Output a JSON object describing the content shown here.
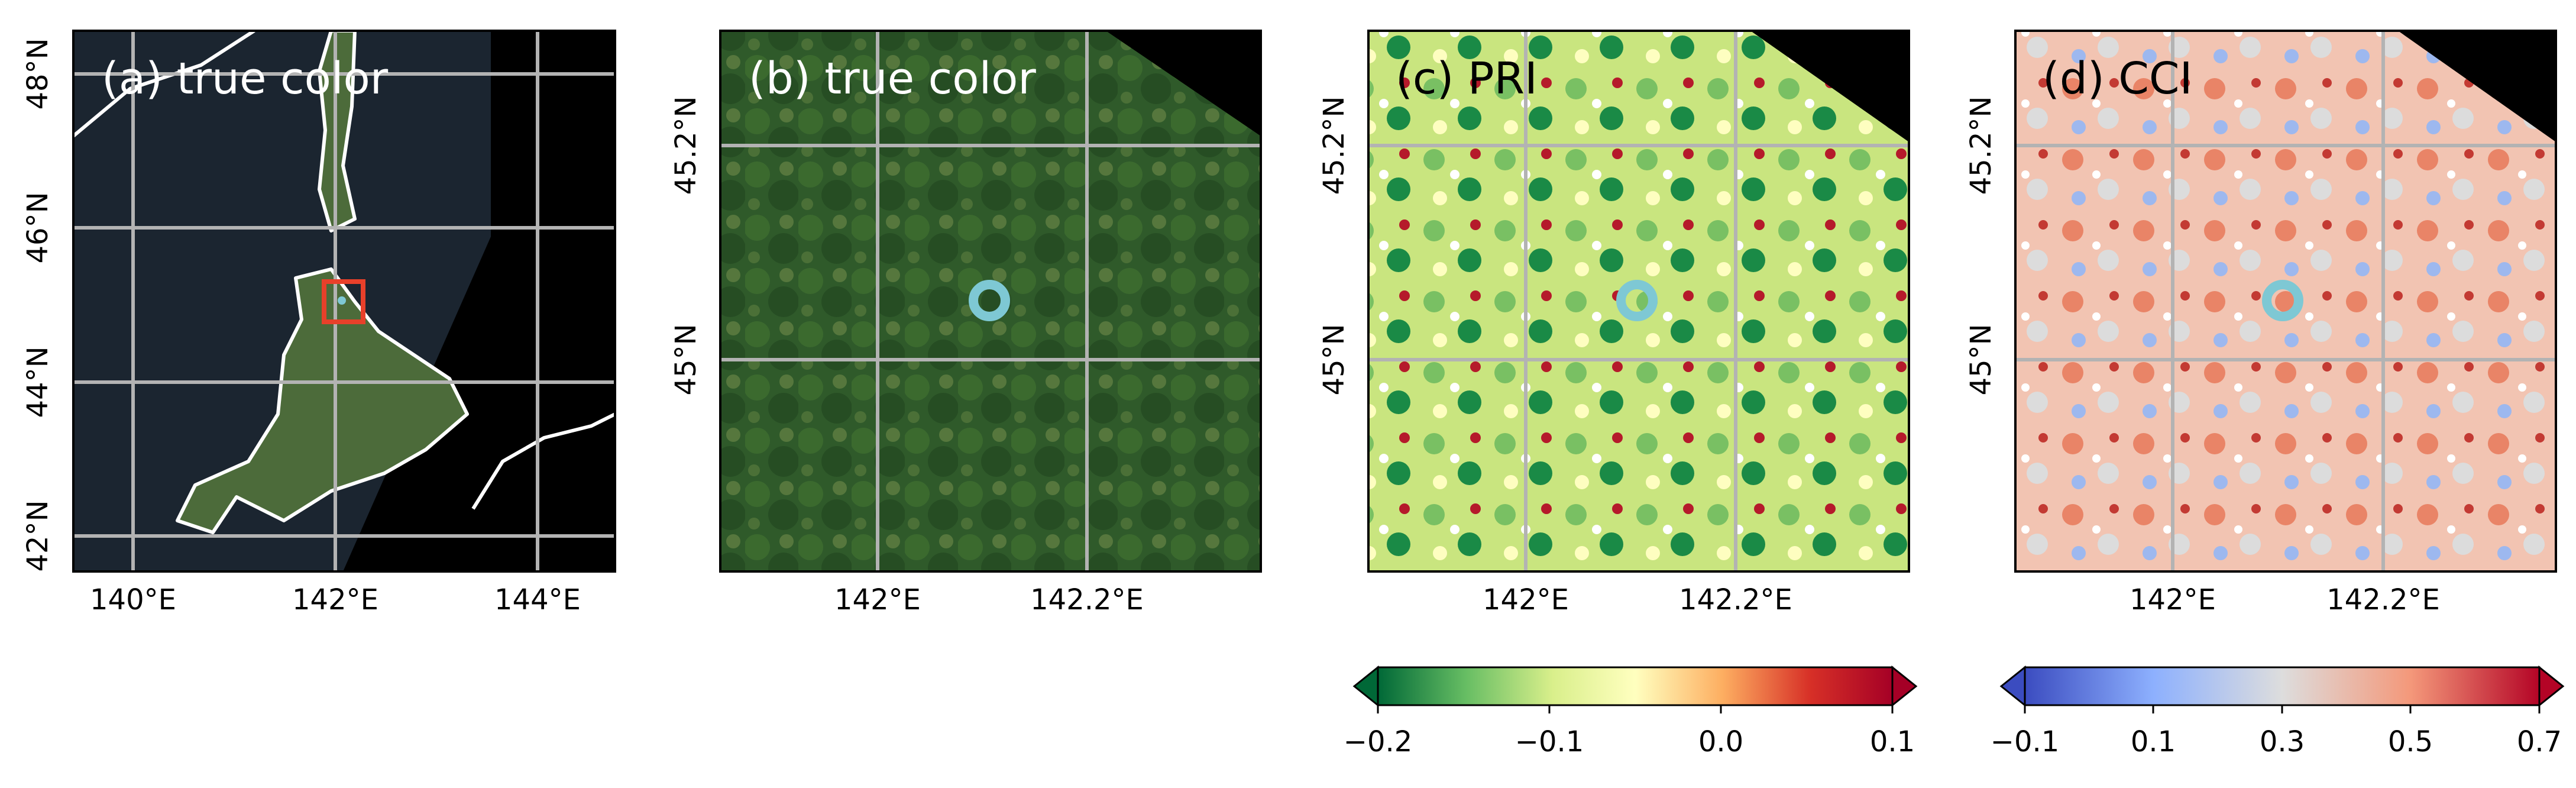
{
  "panels": [
    {
      "title": "(a) true color",
      "lon_ticks": [
        "140°E",
        "142°E",
        "144°E"
      ],
      "lat_ticks": [
        "42°N",
        "44°N",
        "46°N",
        "48°N"
      ]
    },
    {
      "title": "(b) true color",
      "lon_ticks": [
        "142°E",
        "142.2°E"
      ],
      "lat_ticks": [
        "45°N",
        "45.2°N"
      ]
    },
    {
      "title": "(c) PRI",
      "lon_ticks": [
        "142°E",
        "142.2°E"
      ],
      "lat_ticks": [
        "45°N",
        "45.2°N"
      ]
    },
    {
      "title": "(d) CCI",
      "lon_ticks": [
        "142°E",
        "142.2°E"
      ],
      "lat_ticks": [
        "45°N",
        "45.2°N"
      ]
    }
  ],
  "colorbars": [
    {
      "for": "(c) PRI",
      "ticks": [
        "−0.2",
        "−0.1",
        "0.0",
        "0.1"
      ],
      "range": [
        -0.2,
        0.1
      ],
      "colors": [
        "#006837",
        "#66bd63",
        "#d9ef8b",
        "#ffffbf",
        "#fdae61",
        "#d73027",
        "#a50026"
      ]
    },
    {
      "for": "(d) CCI",
      "ticks": [
        "−0.1",
        "0.1",
        "0.3",
        "0.5",
        "0.7"
      ],
      "range": [
        -0.1,
        0.7
      ],
      "colors": [
        "#3b4cc0",
        "#8db0fe",
        "#dddddd",
        "#f4987a",
        "#b40426"
      ]
    }
  ],
  "colors": {
    "study_area_box": "#e8402a",
    "site_marker": "#7ec8d4",
    "coastline": "#ffffff",
    "gridline": "#b3b3b3",
    "no_data": "#000000"
  }
}
